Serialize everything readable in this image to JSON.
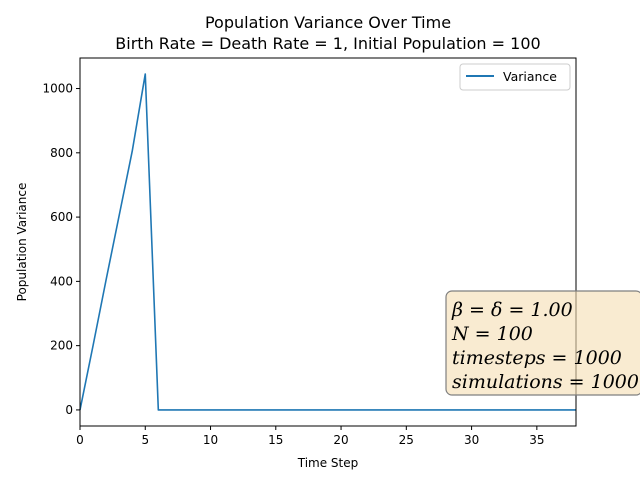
{
  "chart_data": {
    "type": "line",
    "title": "Population Variance Over Time",
    "subtitle": "Birth Rate = Death Rate = 1, Initial Population = 100",
    "xlabel": "Time Step",
    "ylabel": "Population Variance",
    "xlim": [
      0,
      38
    ],
    "ylim": [
      -50,
      1095
    ],
    "xticks": [
      0,
      5,
      10,
      15,
      20,
      25,
      30,
      35
    ],
    "yticks": [
      0,
      200,
      400,
      600,
      800,
      1000
    ],
    "grid": false,
    "legend_position": "top-right",
    "series": [
      {
        "name": "Variance",
        "color": "#1f77b4",
        "x": [
          0,
          1,
          2,
          3,
          4,
          5,
          6,
          7,
          8,
          9,
          10,
          11,
          12,
          13,
          14,
          15,
          16,
          17,
          18,
          19,
          20,
          21,
          22,
          23,
          24,
          25,
          26,
          27,
          28,
          29,
          30,
          31,
          32,
          33,
          34,
          35,
          36,
          37,
          38
        ],
        "y": [
          0,
          200,
          405,
          605,
          805,
          1045,
          0,
          0,
          0,
          0,
          0,
          0,
          0,
          0,
          0,
          0,
          0,
          0,
          0,
          0,
          0,
          0,
          0,
          0,
          0,
          0,
          0,
          0,
          0,
          0,
          0,
          0,
          0,
          0,
          0,
          0,
          0,
          0,
          0
        ]
      }
    ],
    "annotation": {
      "lines": [
        "β = δ = 1.00",
        "N = 100",
        "timesteps = 1000",
        "simulations = 1000"
      ],
      "background": "#f5deb3",
      "border": "#7f7f7f"
    }
  }
}
